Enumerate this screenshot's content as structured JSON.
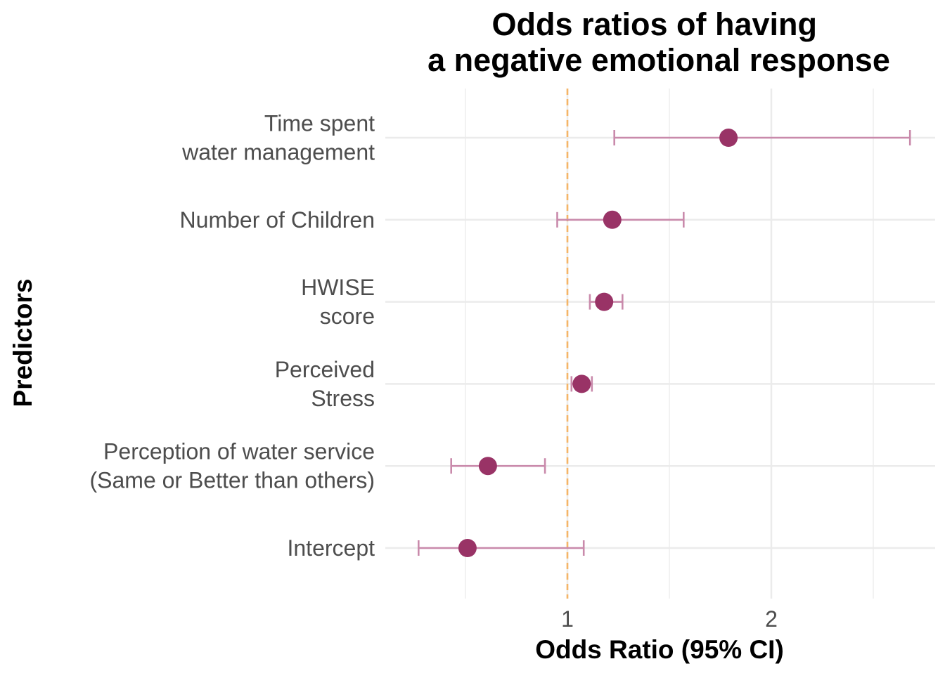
{
  "chart_data": {
    "type": "scatter",
    "title": [
      "Odds ratios of having",
      "a negative emotional response"
    ],
    "xlabel": "Odds Ratio (95% CI)",
    "ylabel": "Predictors",
    "x_ticks": [
      {
        "value": 1,
        "label": "1"
      },
      {
        "value": 2,
        "label": "2"
      }
    ],
    "x_minor_ticks": [
      0.5,
      1.5,
      2.5
    ],
    "xlim": [
      0.25,
      2.75
    ],
    "reference_line": {
      "value": 1,
      "style": "dashed",
      "color": "#f5b567"
    },
    "grid": true,
    "legend": "none",
    "point_color": "#993366",
    "errorbar_color": "#c98aab",
    "predictors": [
      {
        "label": [
          "Time spent",
          "water management"
        ],
        "estimate": 1.79,
        "ci_low": 1.23,
        "ci_high": 2.68
      },
      {
        "label": [
          "Number of Children"
        ],
        "estimate": 1.22,
        "ci_low": 0.95,
        "ci_high": 1.57
      },
      {
        "label": [
          "HWISE",
          "score"
        ],
        "estimate": 1.18,
        "ci_low": 1.11,
        "ci_high": 1.27
      },
      {
        "label": [
          "Perceived",
          "Stress"
        ],
        "estimate": 1.07,
        "ci_low": 1.02,
        "ci_high": 1.12
      },
      {
        "label": [
          "Perception of water service",
          "(Same or Better than others)"
        ],
        "estimate": 0.61,
        "ci_low": 0.43,
        "ci_high": 0.89
      },
      {
        "label": [
          "Intercept"
        ],
        "estimate": 0.51,
        "ci_low": 0.27,
        "ci_high": 1.08
      }
    ]
  }
}
